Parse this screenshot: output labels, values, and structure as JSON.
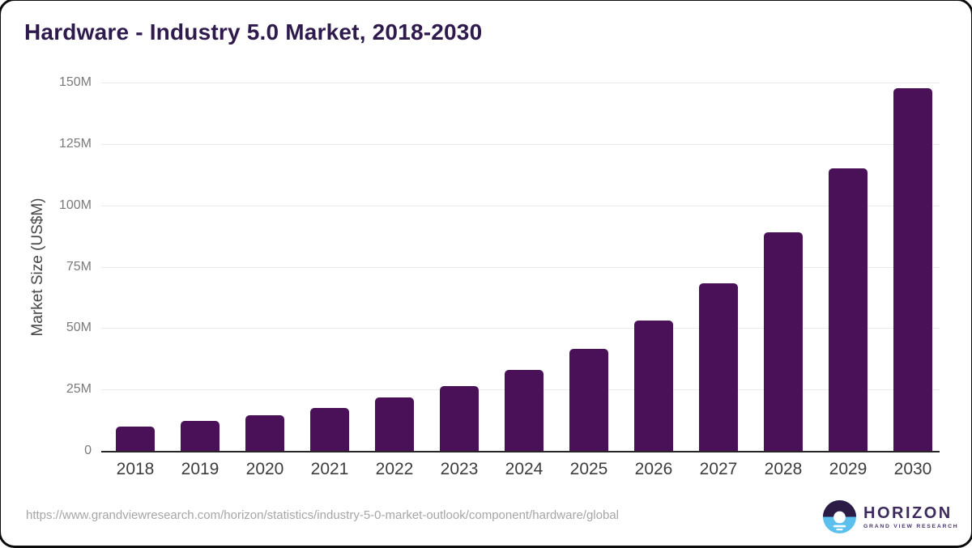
{
  "page": {
    "title": "Hardware - Industry 5.0 Market, 2018-2030",
    "source_url": "https://www.grandviewresearch.com/horizon/statistics/industry-5-0-market-outlook/component/hardware/global"
  },
  "brand": {
    "name": "HORIZON",
    "tagline": "GRAND VIEW RESEARCH",
    "logo_icon": "horizon-sunset-circle-icon",
    "colors": {
      "wordmark": "#3d2b5e",
      "circle_top": "#2b1b45",
      "circle_bottom": "#5bc0ee",
      "sun": "#ffffff"
    }
  },
  "chart_data": {
    "type": "bar",
    "title": "Hardware - Industry 5.0 Market, 2018-2030",
    "xlabel": "",
    "ylabel": "Market Size (US$M)",
    "categories": [
      "2018",
      "2019",
      "2020",
      "2021",
      "2022",
      "2023",
      "2024",
      "2025",
      "2026",
      "2027",
      "2028",
      "2029",
      "2030"
    ],
    "values": [
      10.0,
      12.3,
      14.6,
      17.6,
      21.8,
      26.4,
      33.1,
      41.6,
      53.2,
      68.1,
      89.0,
      115.2,
      147.6
    ],
    "ylim": [
      0,
      150
    ],
    "ytick_values": [
      0,
      25,
      50,
      75,
      100,
      125,
      150
    ],
    "ytick_labels": [
      "0",
      "25M",
      "50M",
      "75M",
      "100M",
      "125M",
      "150M"
    ],
    "grid": true,
    "legend": null,
    "bar_color": "#4a1058",
    "gridline_color": "#ebebeb",
    "axis_color": "#262626"
  }
}
